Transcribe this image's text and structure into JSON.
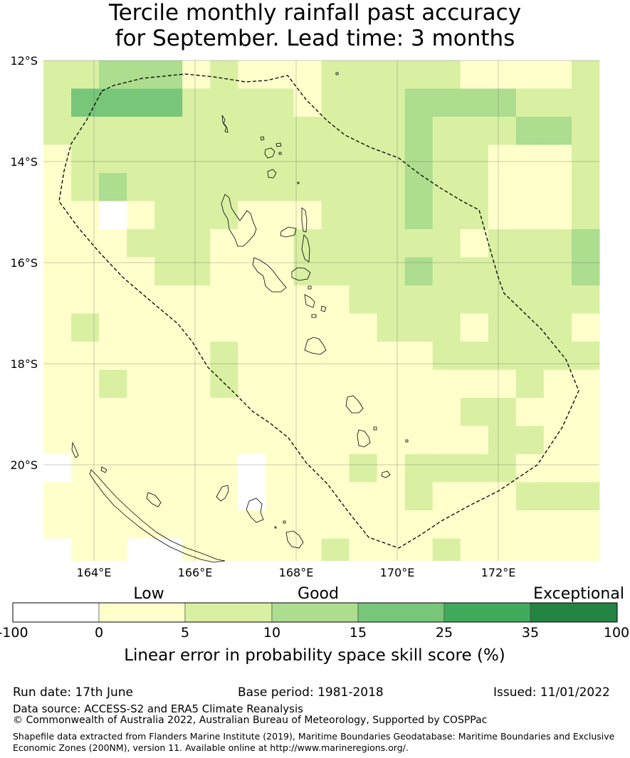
{
  "title": {
    "line1": "Tercile monthly rainfall past accuracy",
    "line2": "for September. Lead time: 3 months"
  },
  "map": {
    "lat_labels": [
      "12°S",
      "14°S",
      "16°S",
      "18°S",
      "20°S"
    ],
    "lon_labels": [
      "164°E",
      "166°E",
      "168°E",
      "170°E",
      "172°E"
    ],
    "lon_range": [
      163.0,
      174.0
    ],
    "lat_range": [
      -21.9,
      -12.0
    ],
    "grid_lines": true,
    "boundary": "Vanuatu EEZ (dashed)"
  },
  "colorbar": {
    "category_labels": [
      "Low",
      "Good",
      "Exceptional"
    ],
    "tick_labels": [
      "-100",
      "0",
      "5",
      "10",
      "15",
      "25",
      "35",
      "100"
    ],
    "colors": [
      "#ffffff",
      "#ffffcc",
      "#d9f0a3",
      "#addd8e",
      "#78c679",
      "#41ab5d",
      "#238443"
    ],
    "label": "Linear error in probability space skill score (%)"
  },
  "footer": {
    "run_date": "Run date: 17th June",
    "base_period": "Base period: 1981-2018",
    "issued": "Issued: 11/01/2022",
    "data_source": "Data source: ACCESS-S2 and ERA5 Climate Reanalysis",
    "copyright": "© Commonwealth of Australia 2022, Australian Bureau of Meteorology, Supported by COSPPac",
    "shapefile": "Shapefile data extracted from Flanders Marine Institute (2019), Maritime Boundaries Geodatabase: Maritime Boundaries and Exclusive Economic Zones (200NM), version 11. Available online at http://www.marineregions.org/."
  }
}
